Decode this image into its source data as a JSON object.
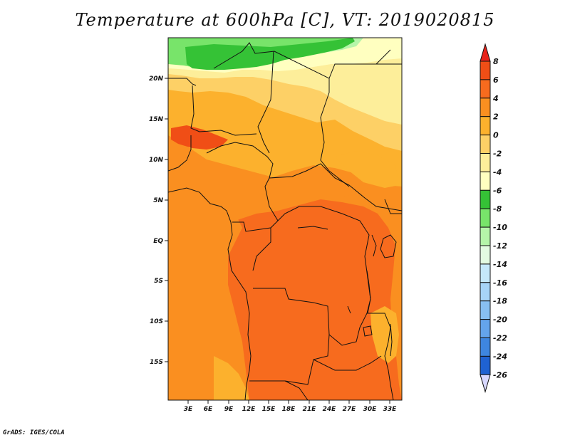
{
  "map": {
    "title": "Temperature at 600hPa [C], VT: 2019020815",
    "credit": "GrADS: IGES/COLA",
    "lat_labels": [
      "20N",
      "15N",
      "10N",
      "5N",
      "EQ",
      "5S",
      "10S",
      "15S"
    ],
    "lon_labels": [
      "3E",
      "6E",
      "9E",
      "12E",
      "15E",
      "18E",
      "21E",
      "24E",
      "27E",
      "30E",
      "33E"
    ]
  },
  "colorbar": {
    "labels": [
      "8",
      "6",
      "4",
      "2",
      "0",
      "-2",
      "-4",
      "-6",
      "-8",
      "-10",
      "-12",
      "-14",
      "-16",
      "-18",
      "-20",
      "-22",
      "-24",
      "-26"
    ],
    "colors": [
      "#e8231a",
      "#f04e16",
      "#f76b1e",
      "#fa8f20",
      "#fcb12d",
      "#fdd066",
      "#fdee9a",
      "#ffffc0",
      "#35c236",
      "#78e46a",
      "#b5f5a9",
      "#e3fbe1",
      "#c5e8fa",
      "#a7d4f7",
      "#88bff1",
      "#64a4eb",
      "#3e86e0",
      "#1f62d2",
      "#0d43b5",
      "#0b2a8a",
      "#0a1266",
      "#d8d8ff"
    ]
  },
  "colors": {
    "lightyellow": "#fdee9a",
    "paleyellow": "#fdd066",
    "orange_light": "#fcb12d",
    "orange": "#fa8f20",
    "orange_dark": "#f76b1e",
    "red_orange": "#f04e16",
    "green_dark": "#35c236",
    "green": "#78e46a",
    "green_light": "#b5f5a9"
  }
}
